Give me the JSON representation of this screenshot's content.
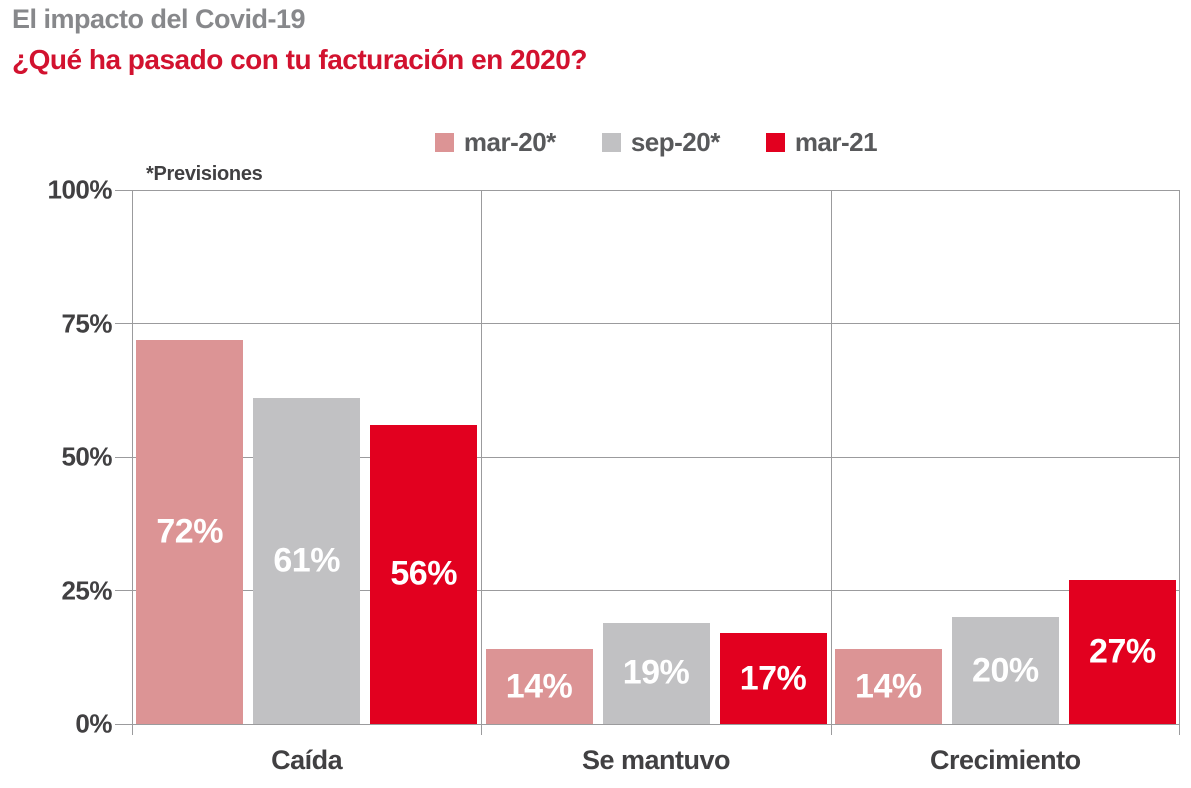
{
  "header": {
    "title": "El impacto del Covid-19",
    "subtitle": "¿Qué ha pasado con tu facturación en 2020?"
  },
  "note": "*Previsiones",
  "legend": [
    {
      "label": "mar-20*",
      "color": "#dc9495"
    },
    {
      "label": "sep-20*",
      "color": "#c1c1c3"
    },
    {
      "label": "mar-21",
      "color": "#e2001f"
    }
  ],
  "colors": {
    "title_text": "#87888b",
    "subtitle_text": "#d2122f",
    "axis_text": "#414042",
    "legend_text": "#58595b",
    "grid": "#9b9b9d",
    "bar_label_text": "#ffffff"
  },
  "chart_data": {
    "type": "bar",
    "title": "El impacto del Covid-19",
    "subtitle": "¿Qué ha pasado con tu facturación en 2020?",
    "annotation": "*Previsiones",
    "categories": [
      "Caída",
      "Se mantuvo",
      "Crecimiento"
    ],
    "series": [
      {
        "name": "mar-20*",
        "color": "#dc9495",
        "values": [
          72,
          14,
          14
        ]
      },
      {
        "name": "sep-20*",
        "color": "#c1c1c3",
        "values": [
          61,
          19,
          20
        ]
      },
      {
        "name": "mar-21",
        "color": "#e2001f",
        "values": [
          56,
          17,
          27
        ]
      }
    ],
    "value_suffix": "%",
    "xlabel": "",
    "ylabel": "",
    "ylim": [
      0,
      100
    ],
    "yticks": [
      0,
      25,
      50,
      75,
      100
    ],
    "ytick_labels": [
      "0%",
      "25%",
      "50%",
      "75%",
      "100%"
    ],
    "grid": true,
    "legend_position": "top"
  }
}
